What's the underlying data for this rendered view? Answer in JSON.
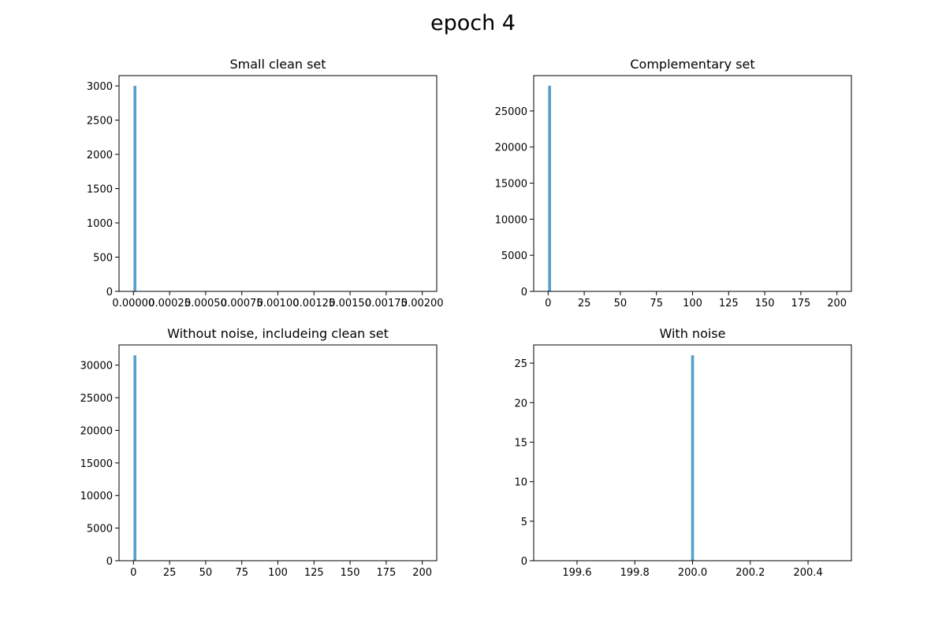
{
  "figure": {
    "title": "epoch 4",
    "bar_color": "#5b9fce"
  },
  "chart_data": [
    {
      "type": "bar",
      "title": "Small clean set",
      "xlabel": "",
      "ylabel": "",
      "xlim": [
        -0.0001,
        0.0021
      ],
      "ylim": [
        0,
        3150
      ],
      "xticks": [
        0.0,
        0.00025,
        0.0005,
        0.00075,
        0.001,
        0.00125,
        0.0015,
        0.00175,
        0.002
      ],
      "xtick_labels": [
        "0.00000",
        "0.00025",
        "0.00050",
        "0.00075",
        "0.00100",
        "0.00125",
        "0.00150",
        "0.00175",
        "0.00200"
      ],
      "yticks": [
        0,
        500,
        1000,
        1500,
        2000,
        2500,
        3000
      ],
      "ytick_labels": [
        "0",
        "500",
        "1000",
        "1500",
        "2000",
        "2500",
        "3000"
      ],
      "bars": [
        {
          "x0": 0.0,
          "x1": 2e-05,
          "value": 3000
        }
      ],
      "grid": false
    },
    {
      "type": "bar",
      "title": "Complementary set",
      "xlabel": "",
      "ylabel": "",
      "xlim": [
        -10,
        210
      ],
      "ylim": [
        0,
        29900
      ],
      "xticks": [
        0,
        25,
        50,
        75,
        100,
        125,
        150,
        175,
        200
      ],
      "xtick_labels": [
        "0",
        "25",
        "50",
        "75",
        "100",
        "125",
        "150",
        "175",
        "200"
      ],
      "yticks": [
        0,
        5000,
        10000,
        15000,
        20000,
        25000
      ],
      "ytick_labels": [
        "0",
        "5000",
        "10000",
        "15000",
        "20000",
        "25000"
      ],
      "bars": [
        {
          "x0": 0.0,
          "x1": 2.0,
          "value": 28500
        }
      ],
      "grid": false
    },
    {
      "type": "bar",
      "title": "Without noise, includeing clean set",
      "xlabel": "",
      "ylabel": "",
      "xlim": [
        -10,
        210
      ],
      "ylim": [
        0,
        33100
      ],
      "xticks": [
        0,
        25,
        50,
        75,
        100,
        125,
        150,
        175,
        200
      ],
      "xtick_labels": [
        "0",
        "25",
        "50",
        "75",
        "100",
        "125",
        "150",
        "175",
        "200"
      ],
      "yticks": [
        0,
        5000,
        10000,
        15000,
        20000,
        25000,
        30000
      ],
      "ytick_labels": [
        "0",
        "5000",
        "10000",
        "15000",
        "20000",
        "25000",
        "30000"
      ],
      "bars": [
        {
          "x0": 0.0,
          "x1": 2.0,
          "value": 31500
        }
      ],
      "grid": false
    },
    {
      "type": "bar",
      "title": "With noise",
      "xlabel": "",
      "ylabel": "",
      "xlim": [
        199.45,
        200.55
      ],
      "ylim": [
        0,
        27.3
      ],
      "xticks": [
        199.6,
        199.8,
        200.0,
        200.2,
        200.4
      ],
      "xtick_labels": [
        "199.6",
        "199.8",
        "200.0",
        "200.2",
        "200.4"
      ],
      "yticks": [
        0,
        5,
        10,
        15,
        20,
        25
      ],
      "ytick_labels": [
        "0",
        "5",
        "10",
        "15",
        "20",
        "25"
      ],
      "bars": [
        {
          "x0": 199.995,
          "x1": 200.005,
          "value": 26
        }
      ],
      "grid": false
    }
  ]
}
